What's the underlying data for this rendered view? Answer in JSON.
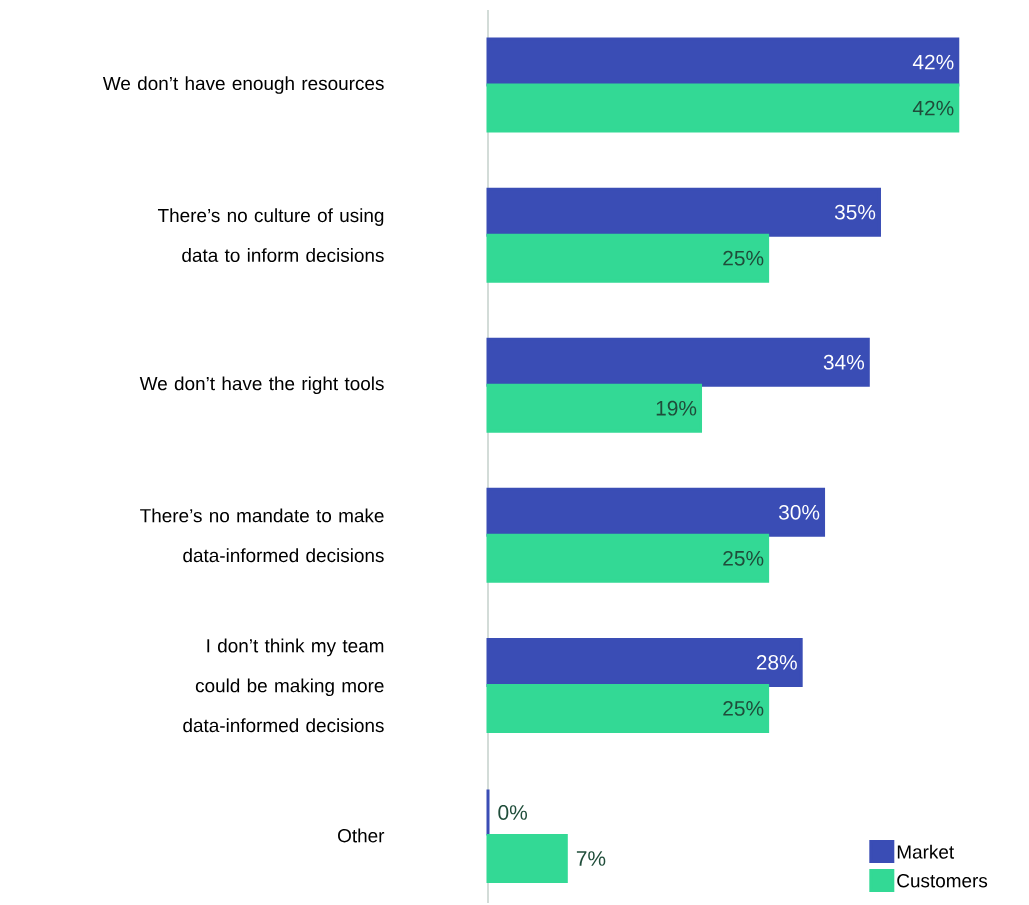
{
  "chart_data": {
    "type": "bar",
    "orientation": "horizontal",
    "legend": "bottom right",
    "categories": [
      "We don’t have enough resources",
      "There’s no culture of using data to inform decisions",
      "We don’t have the right tools",
      "There’s no mandate to make data-informed decisions",
      "I don’t think my team could be making more data-informed decisions",
      "Other"
    ],
    "series": [
      {
        "name": "Market",
        "color": "#3a4db5",
        "values": [
          42,
          35,
          34,
          30,
          28,
          0
        ],
        "value_labels": [
          "42%",
          "35%",
          "34%",
          "30%",
          "28%",
          "0%"
        ]
      },
      {
        "name": "Customers",
        "color": "#33d995",
        "values": [
          42,
          25,
          19,
          25,
          25,
          7
        ],
        "value_labels": [
          "42%",
          "25%",
          "19%",
          "25%",
          "25%",
          "7%"
        ]
      }
    ]
  }
}
